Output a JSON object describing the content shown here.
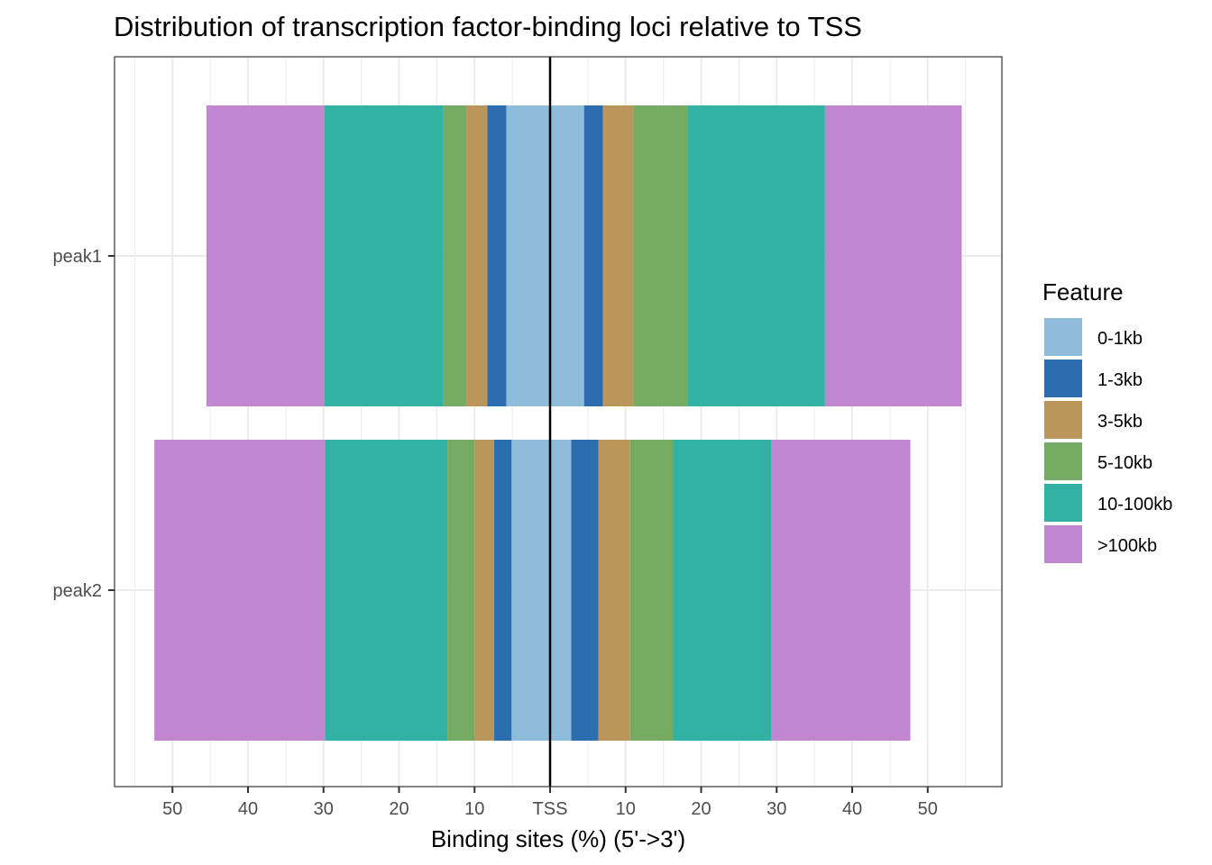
{
  "chart_data": {
    "type": "bar",
    "orientation": "horizontal-diverging",
    "title": "Distribution of transcription factor-binding loci relative to TSS",
    "xlabel": "Binding sites (%) (5'->3')",
    "ylabel": "",
    "xlim": [
      -55,
      55
    ],
    "center_label": "TSS",
    "x_ticks": [
      {
        "value": -50,
        "label": "50"
      },
      {
        "value": -40,
        "label": "40"
      },
      {
        "value": -30,
        "label": "30"
      },
      {
        "value": -20,
        "label": "20"
      },
      {
        "value": -10,
        "label": "10"
      },
      {
        "value": 0,
        "label": "TSS"
      },
      {
        "value": 10,
        "label": "10"
      },
      {
        "value": 20,
        "label": "20"
      },
      {
        "value": 30,
        "label": "30"
      },
      {
        "value": 40,
        "label": "40"
      },
      {
        "value": 50,
        "label": "50"
      }
    ],
    "categories": [
      "peak1",
      "peak2"
    ],
    "legend": {
      "title": "Feature",
      "position": "right",
      "items": [
        {
          "label": "0-1kb",
          "color": "#8FBCDB"
        },
        {
          "label": "1-3kb",
          "color": "#2A6EB0"
        },
        {
          "label": "3-5kb",
          "color": "#BA965A"
        },
        {
          "label": "5-10kb",
          "color": "#75AB62"
        },
        {
          "label": "10-100kb",
          "color": "#32B2A2"
        },
        {
          "label": ">100kb",
          "color": "#C186CF"
        }
      ]
    },
    "series": [
      {
        "name": "0-1kb",
        "color": "#8FBCDB",
        "upstream": [
          5.8,
          5.1
        ],
        "downstream": [
          4.5,
          2.8
        ]
      },
      {
        "name": "1-3kb",
        "color": "#2A6EB0",
        "upstream": [
          2.5,
          2.3
        ],
        "downstream": [
          2.5,
          3.6
        ]
      },
      {
        "name": "3-5kb",
        "color": "#BA965A",
        "upstream": [
          2.8,
          2.6
        ],
        "downstream": [
          4.0,
          4.2
        ]
      },
      {
        "name": "5-10kb",
        "color": "#75AB62",
        "upstream": [
          3.0,
          3.6
        ],
        "downstream": [
          7.2,
          5.7
        ]
      },
      {
        "name": "10-100kb",
        "color": "#32B2A2",
        "upstream": [
          15.8,
          16.2
        ],
        "downstream": [
          18.2,
          13.0
        ]
      },
      {
        "name": ">100kb",
        "color": "#C186CF",
        "upstream": [
          15.6,
          22.6
        ],
        "downstream": [
          18.1,
          18.4
        ]
      }
    ],
    "grid": true
  }
}
